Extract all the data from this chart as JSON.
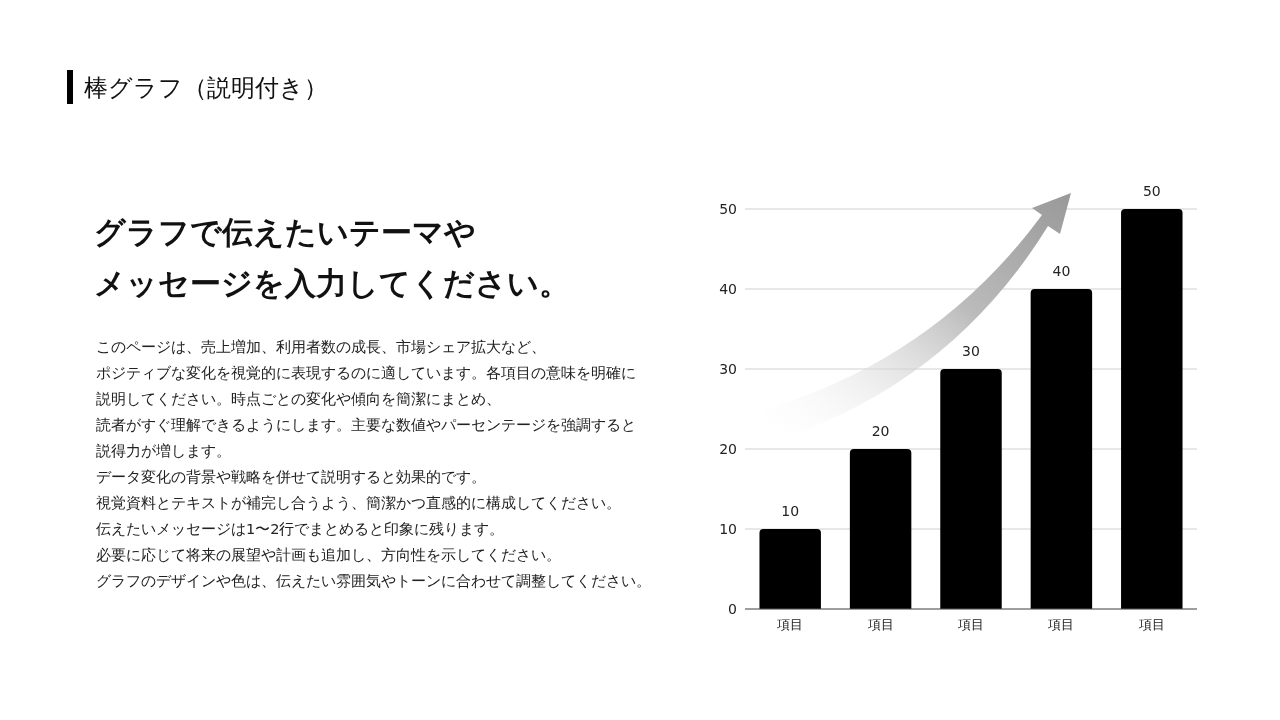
{
  "chart_data": {
    "type": "bar",
    "title": "棒グラフ（説明付き）",
    "subtitle": "グラフで伝えたいテーマや",
    "annotations": [
      "メッセージを入力してください。",
      "このページは、売上増加、利用者数の成長、市場シェア拡大など、",
      "ポジティブな変化を視覚的に表現するのに適しています。各項目の意味を明確に",
      "説明してください。時点ごとの変化や傾向を簡潔にまとめ、",
      "読者がすぐ理解できるようにします。主要な数値やパーセンテージを強調すると",
      "説得力が増します。",
      "データ変化の背景や戦略を併せて説明すると効果的です。",
      "視覚資料とテキストが補完し合うよう、簡潔かつ直感的に構成してください。",
      "伝えたいメッセージは1〜2行でまとめると印象に残ります。",
      "必要に応じて将来の展望や計画も追加し、方向性を示してください。",
      "グラフのデザインや色は、伝えたい雰囲気やトーンに合わせて調整してください。"
    ],
    "categories": [
      "項目",
      "項目",
      "項目",
      "項目",
      "項目"
    ],
    "values": [
      10,
      20,
      30,
      40,
      50
    ],
    "color": "#000000",
    "ylim": [
      0,
      50
    ],
    "yticks": [
      0,
      10,
      20,
      30,
      40,
      50
    ],
    "grid": "y",
    "data_labels": true
  }
}
